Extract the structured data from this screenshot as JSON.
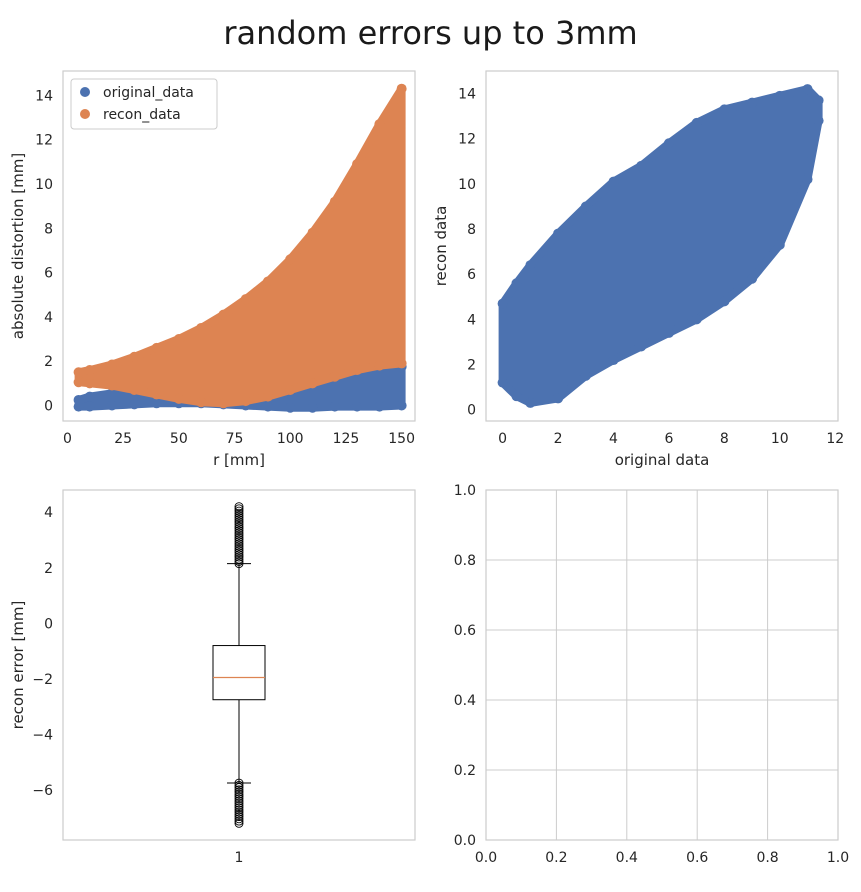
{
  "figure": {
    "title": "random errors up to 3mm"
  },
  "colors": {
    "blue": "#4c72b0",
    "orange": "#dd8452",
    "grid": "#cccccc",
    "spine": "#cccccc"
  },
  "chart_data": [
    {
      "id": "ax1",
      "type": "scatter",
      "xlabel": "r [mm]",
      "ylabel": "absolute distortion [mm]",
      "xlim": [
        -2,
        156
      ],
      "ylim": [
        -0.7,
        15.1
      ],
      "xticks": [
        0,
        25,
        50,
        75,
        100,
        125,
        150
      ],
      "yticks": [
        0,
        2,
        4,
        6,
        8,
        10,
        12,
        14
      ],
      "grid": false,
      "legend": {
        "placement": "top-left",
        "entries": [
          "original_data",
          "recon_data"
        ]
      },
      "series": [
        {
          "name": "original_data",
          "color": "#4c72b0",
          "envelope_x": [
            5,
            10,
            20,
            30,
            40,
            50,
            60,
            70,
            80,
            90,
            100,
            110,
            120,
            130,
            140,
            150
          ],
          "envelope_lower": [
            -0.05,
            -0.05,
            0.0,
            0.05,
            0.1,
            0.1,
            0.1,
            0.05,
            0.0,
            -0.05,
            -0.1,
            -0.1,
            -0.05,
            -0.05,
            -0.05,
            0.0
          ],
          "envelope_upper": [
            0.25,
            0.4,
            0.55,
            0.65,
            0.7,
            0.75,
            0.8,
            0.8,
            0.85,
            0.95,
            1.1,
            1.3,
            1.55,
            1.75,
            1.7,
            1.75
          ]
        },
        {
          "name": "recon_data",
          "color": "#dd8452",
          "envelope_x": [
            5,
            10,
            20,
            30,
            40,
            50,
            60,
            70,
            80,
            90,
            100,
            110,
            120,
            130,
            140,
            150
          ],
          "envelope_lower": [
            1.05,
            1.0,
            0.9,
            0.7,
            0.5,
            0.3,
            0.15,
            0.1,
            0.2,
            0.4,
            0.7,
            1.0,
            1.3,
            1.6,
            1.8,
            1.9
          ],
          "envelope_upper": [
            1.5,
            1.6,
            1.85,
            2.2,
            2.6,
            3.0,
            3.5,
            4.1,
            4.8,
            5.6,
            6.6,
            7.8,
            9.2,
            10.9,
            12.7,
            14.3
          ]
        }
      ]
    },
    {
      "id": "ax2",
      "type": "scatter",
      "xlabel": "original data",
      "ylabel": "recon data",
      "xlim": [
        -0.6,
        12.1
      ],
      "ylim": [
        -0.5,
        15.0
      ],
      "xticks": [
        0,
        2,
        4,
        6,
        8,
        10,
        12
      ],
      "yticks": [
        0,
        2,
        4,
        6,
        8,
        10,
        12,
        14
      ],
      "grid": false,
      "series": [
        {
          "name": "",
          "color": "#4c72b0",
          "envelope_x": [
            0.0,
            0.5,
            1.0,
            2.0,
            3.0,
            4.0,
            5.0,
            6.0,
            7.0,
            8.0,
            9.0,
            10.0,
            11.0,
            11.4
          ],
          "envelope_lower": [
            1.2,
            0.6,
            0.3,
            0.5,
            1.5,
            2.2,
            2.8,
            3.4,
            4.0,
            4.8,
            5.8,
            7.3,
            10.2,
            12.8
          ],
          "envelope_upper": [
            4.7,
            5.6,
            6.4,
            7.8,
            9.0,
            10.1,
            10.8,
            11.8,
            12.7,
            13.3,
            13.6,
            13.9,
            14.2,
            13.7
          ]
        }
      ]
    },
    {
      "id": "ax3",
      "type": "box",
      "xlabel": "",
      "ylabel": "recon error [mm]",
      "xlim": [
        0.5,
        1.5
      ],
      "ylim": [
        -7.8,
        4.8
      ],
      "xticks": [
        1
      ],
      "xtick_labels": [
        "1"
      ],
      "yticks": [
        -6,
        -4,
        -2,
        0,
        2,
        4
      ],
      "grid": false,
      "box": {
        "whisker_low": -5.75,
        "q1": -2.75,
        "median": -1.95,
        "q3": -0.8,
        "whisker_high": 2.15,
        "outliers_high_range": [
          2.15,
          4.2
        ],
        "outliers_low_range": [
          -7.2,
          -5.75
        ]
      }
    },
    {
      "id": "ax4",
      "type": "empty",
      "xlim": [
        0,
        1
      ],
      "ylim": [
        0,
        1
      ],
      "xticks": [
        0.0,
        0.2,
        0.4,
        0.6,
        0.8,
        1.0
      ],
      "yticks": [
        0.0,
        0.2,
        0.4,
        0.6,
        0.8,
        1.0
      ],
      "xtick_labels": [
        "0.0",
        "0.2",
        "0.4",
        "0.6",
        "0.8",
        "1.0"
      ],
      "ytick_labels": [
        "0.0",
        "0.2",
        "0.4",
        "0.6",
        "0.8",
        "1.0"
      ],
      "grid": true
    }
  ]
}
